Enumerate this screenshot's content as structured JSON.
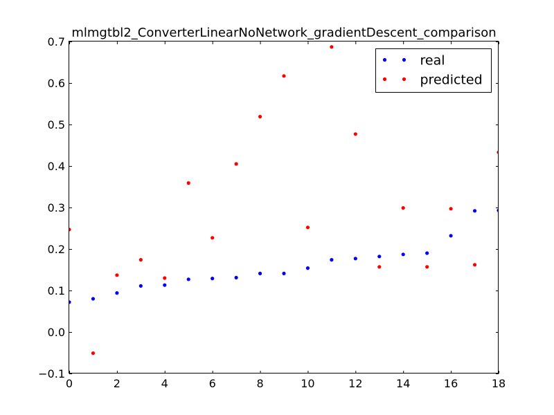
{
  "chart_data": {
    "type": "scatter",
    "title": "mlmgtbl2_ConverterLinearNoNetwork_gradientDescent_comparison",
    "xlabel": "",
    "ylabel": "",
    "xlim": [
      0,
      18
    ],
    "ylim": [
      -0.1,
      0.7
    ],
    "xticks": [
      0,
      2,
      4,
      6,
      8,
      10,
      12,
      14,
      16,
      18
    ],
    "yticks": [
      -0.1,
      0.0,
      0.1,
      0.2,
      0.3,
      0.4,
      0.5,
      0.6,
      0.7
    ],
    "xtick_labels": [
      "0",
      "2",
      "4",
      "6",
      "8",
      "10",
      "12",
      "14",
      "16",
      "18"
    ],
    "ytick_labels": [
      "−0.1",
      "0.0",
      "0.1",
      "0.2",
      "0.3",
      "0.4",
      "0.5",
      "0.6",
      "0.7"
    ],
    "grid": false,
    "legend_position": "top-right",
    "x": [
      0,
      1,
      2,
      3,
      4,
      5,
      6,
      7,
      8,
      9,
      10,
      11,
      12,
      13,
      14,
      15,
      16,
      17,
      18
    ],
    "series": [
      {
        "name": "real",
        "color": "#0000ff",
        "values": [
          0.072,
          0.08,
          0.094,
          0.111,
          0.113,
          0.127,
          0.129,
          0.131,
          0.141,
          0.141,
          0.154,
          0.174,
          0.177,
          0.182,
          0.187,
          0.19,
          0.232,
          0.292,
          0.293
        ]
      },
      {
        "name": "predicted",
        "color": "#ff0000",
        "values": [
          0.247,
          -0.051,
          0.137,
          0.174,
          0.13,
          0.359,
          0.227,
          0.405,
          0.519,
          0.617,
          0.252,
          0.687,
          0.477,
          0.157,
          0.299,
          0.157,
          0.297,
          0.162,
          0.433
        ]
      }
    ]
  }
}
